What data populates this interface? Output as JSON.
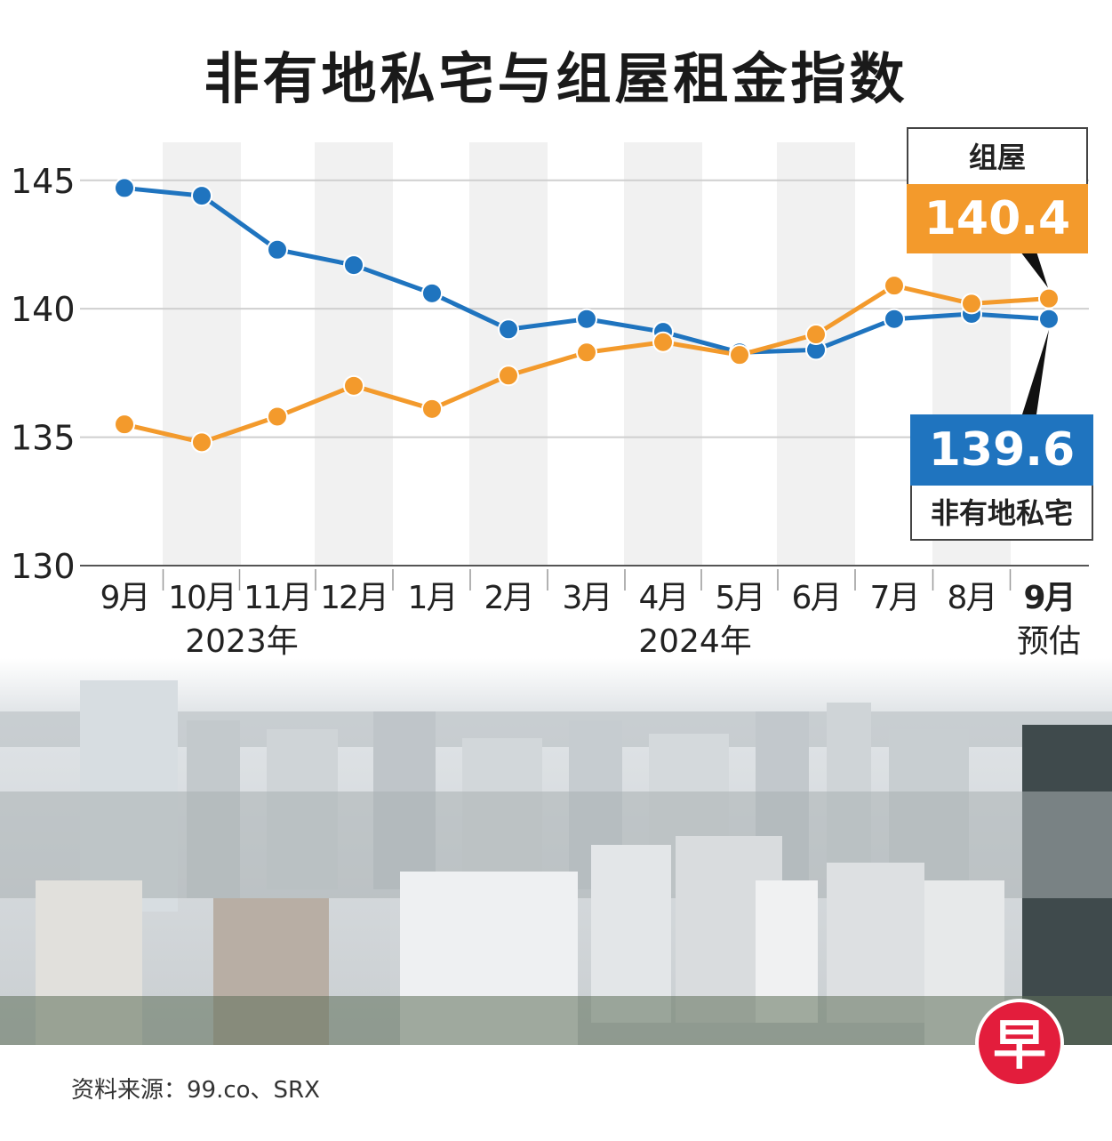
{
  "title": "非有地私宅与组屋租金指数",
  "source": "资料来源：99.co、SRX",
  "logo_char": "早",
  "colors": {
    "hdb": "#f39a2c",
    "private": "#1f74bf"
  },
  "callouts": {
    "hdb_label": "组屋",
    "hdb_value": "140.4",
    "private_value": "139.6",
    "private_label": "非有地私宅"
  },
  "chart_data": {
    "type": "line",
    "title": "非有地私宅与组屋租金指数",
    "categories": [
      "9月",
      "10月",
      "11月",
      "12月",
      "1月",
      "2月",
      "3月",
      "4月",
      "5月",
      "6月",
      "7月",
      "8月",
      "9月"
    ],
    "year_labels": [
      {
        "text": "2023年",
        "span": [
          0,
          3
        ]
      },
      {
        "text": "2024年",
        "span": [
          4,
          12
        ]
      }
    ],
    "estimate_note": "预估",
    "estimate_index": 12,
    "yticks": [
      130,
      135,
      140,
      145
    ],
    "ylim": [
      130,
      147
    ],
    "series": [
      {
        "name": "非有地私宅",
        "key": "private",
        "values": [
          144.7,
          144.4,
          142.3,
          141.7,
          140.6,
          139.2,
          139.6,
          139.1,
          138.3,
          138.4,
          139.6,
          139.8,
          139.6
        ]
      },
      {
        "name": "组屋",
        "key": "hdb",
        "values": [
          135.5,
          134.8,
          135.8,
          137.0,
          136.1,
          137.4,
          138.3,
          138.7,
          138.2,
          139.0,
          140.9,
          140.2,
          140.4
        ]
      }
    ]
  }
}
